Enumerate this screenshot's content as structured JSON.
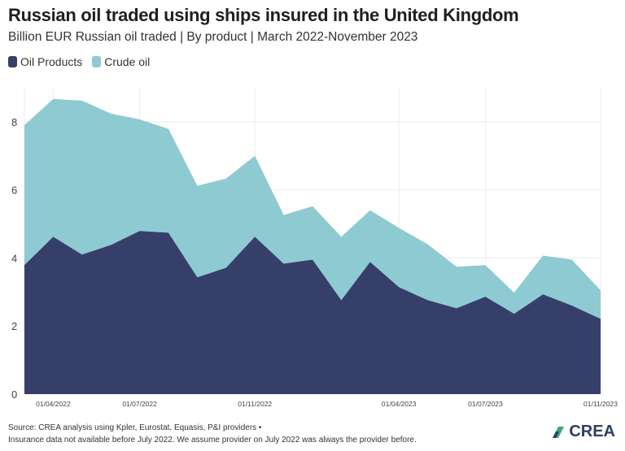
{
  "colors": {
    "oil_products": "#363f6a",
    "crude_oil": "#8ecad2",
    "grid": "#ececec"
  },
  "chart_data": {
    "type": "area",
    "stacked": true,
    "title": "Russian oil traded using ships insured in the United Kingdom",
    "subtitle": "Billion EUR Russian oil traded | By product | March 2022-November 2023",
    "xlabel": "",
    "ylabel": "",
    "ylim": [
      0,
      9
    ],
    "x": [
      0,
      1,
      2,
      3,
      4,
      5,
      6,
      7,
      8,
      9,
      10,
      11,
      12,
      13,
      14,
      15,
      16,
      17,
      18,
      19,
      20
    ],
    "x_ticks": [
      {
        "index": 1,
        "label": "01/04/2022"
      },
      {
        "index": 4,
        "label": "01/07/2022"
      },
      {
        "index": 8,
        "label": "01/11/2022"
      },
      {
        "index": 13,
        "label": "01/04/2023"
      },
      {
        "index": 16,
        "label": "01/07/2023"
      },
      {
        "index": 20,
        "label": "01/11/2023"
      }
    ],
    "y_ticks": [
      0,
      2,
      4,
      6,
      8
    ],
    "legend_position": "top-left",
    "series": [
      {
        "name": "Oil Products",
        "values": [
          3.79,
          4.62,
          4.1,
          4.38,
          4.79,
          4.74,
          3.43,
          3.71,
          4.62,
          3.83,
          3.95,
          2.76,
          3.88,
          3.14,
          2.76,
          2.52,
          2.86,
          2.36,
          2.93,
          2.6,
          2.21
        ]
      },
      {
        "name": "Crude oil",
        "values": [
          4.11,
          4.05,
          4.52,
          3.86,
          3.28,
          3.05,
          2.69,
          2.62,
          2.38,
          1.43,
          1.57,
          1.86,
          1.52,
          1.74,
          1.64,
          1.22,
          0.93,
          0.62,
          1.14,
          1.35,
          0.84
        ]
      }
    ]
  },
  "footer": {
    "source": "Source: CREA analysis using Kpler, Eurostat, Equasis, P&I providers •",
    "note": "Insurance data not available before July 2022. We assume provider on July 2022 was always the provider before."
  },
  "logo": {
    "text": "CREA"
  }
}
